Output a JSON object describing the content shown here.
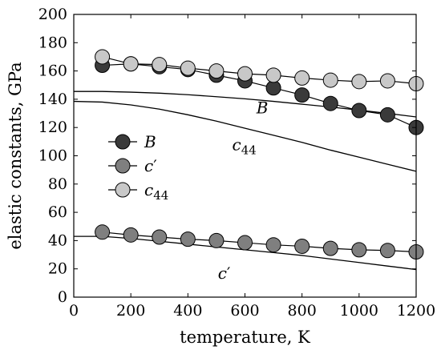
{
  "chart_data": {
    "type": "line",
    "xlabel": "temperature, K",
    "ylabel": "elastic constants, GPa",
    "xlim": [
      0,
      1200
    ],
    "ylim": [
      0,
      200
    ],
    "x_ticks": [
      0,
      200,
      400,
      600,
      800,
      1000,
      1200
    ],
    "y_ticks": [
      0,
      20,
      40,
      60,
      80,
      100,
      120,
      140,
      160,
      180,
      200
    ],
    "grid": false,
    "legend_placement": "center-left",
    "series": [
      {
        "name": "B",
        "label_text": "B",
        "label_sub": "",
        "label_prime": "",
        "marker_fill": "#3a3a3a",
        "x": [
          100,
          200,
          300,
          400,
          500,
          600,
          700,
          800,
          900,
          1000,
          1100,
          1200
        ],
        "values": [
          164,
          165,
          163,
          161,
          157,
          153,
          148,
          143,
          137,
          132,
          129,
          120
        ]
      },
      {
        "name": "c'",
        "label_text": "c",
        "label_sub": "",
        "label_prime": "′",
        "marker_fill": "#7f7f7f",
        "x": [
          100,
          200,
          300,
          400,
          500,
          600,
          700,
          800,
          900,
          1000,
          1100,
          1200
        ],
        "values": [
          46,
          44,
          42.5,
          41,
          40,
          38.5,
          37,
          36,
          34.5,
          33.5,
          33,
          32
        ]
      },
      {
        "name": "c44",
        "label_text": "c",
        "label_sub": "44",
        "label_prime": "",
        "marker_fill": "#c8c8c8",
        "x": [
          100,
          200,
          300,
          400,
          500,
          600,
          700,
          800,
          900,
          1000,
          1100,
          1200
        ],
        "values": [
          170,
          165,
          164.5,
          162,
          160,
          158,
          157,
          155,
          153.5,
          152.5,
          153,
          151
        ]
      }
    ],
    "reference_curves": [
      {
        "name": "B",
        "label_text": "B",
        "label_sub": "",
        "label_prime": "",
        "label_at": [
          640,
          130
        ],
        "x": [
          0,
          100,
          200,
          300,
          400,
          500,
          600,
          700,
          800,
          900,
          1000,
          1100,
          1200
        ],
        "values": [
          145.5,
          145.5,
          145,
          144.3,
          143.2,
          141.8,
          140.3,
          138.5,
          136.5,
          134.5,
          132.3,
          130,
          127.5
        ]
      },
      {
        "name": "c44",
        "label_text": "c",
        "label_sub": "44",
        "label_prime": "",
        "label_at": [
          555,
          104
        ],
        "x": [
          0,
          100,
          200,
          300,
          400,
          500,
          600,
          700,
          800,
          900,
          1000,
          1100,
          1200
        ],
        "values": [
          138.5,
          138,
          136,
          133,
          129,
          124.5,
          119.5,
          114.5,
          109.5,
          104,
          99,
          94,
          89
        ]
      },
      {
        "name": "c'",
        "label_text": "c",
        "label_sub": "",
        "label_prime": "′",
        "label_at": [
          505,
          13
        ],
        "x": [
          0,
          100,
          200,
          300,
          400,
          500,
          600,
          700,
          800,
          900,
          1000,
          1100,
          1200
        ],
        "values": [
          43,
          43,
          41.5,
          39.5,
          37.5,
          35.5,
          33.5,
          31.5,
          29.5,
          27,
          24.5,
          22,
          19.5
        ]
      }
    ]
  }
}
